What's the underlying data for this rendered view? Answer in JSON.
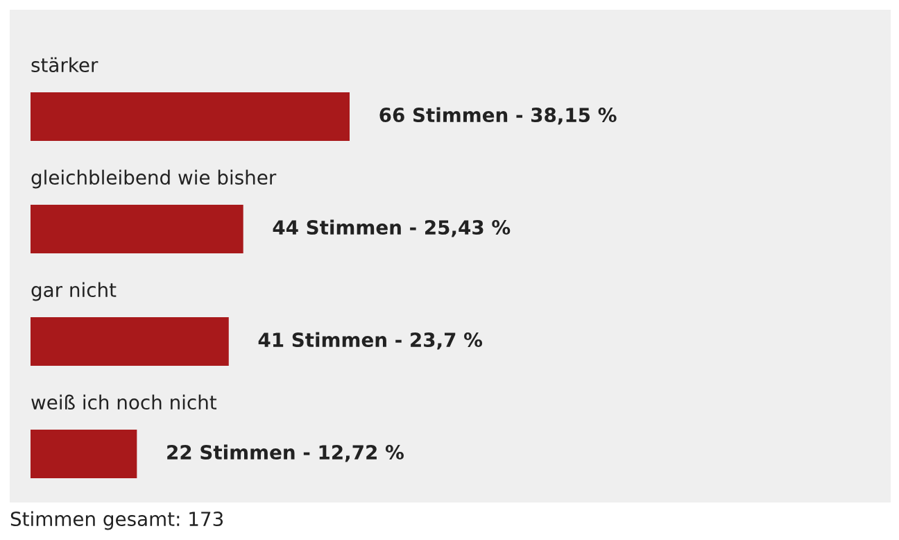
{
  "chart_data": {
    "type": "bar",
    "orientation": "horizontal",
    "categories": [
      "stärker",
      "gleichbleibend wie bisher",
      "gar nicht",
      "weiß ich noch nicht"
    ],
    "values": [
      66,
      44,
      41,
      22
    ],
    "value_labels": [
      "66 Stimmen - 38,15 %",
      "44 Stimmen - 25,43 %",
      "41 Stimmen - 23,7 %",
      "22 Stimmen - 12,72 %"
    ],
    "color": "#a8191b",
    "annotations": [
      "Stimmen gesamt: 173"
    ]
  }
}
